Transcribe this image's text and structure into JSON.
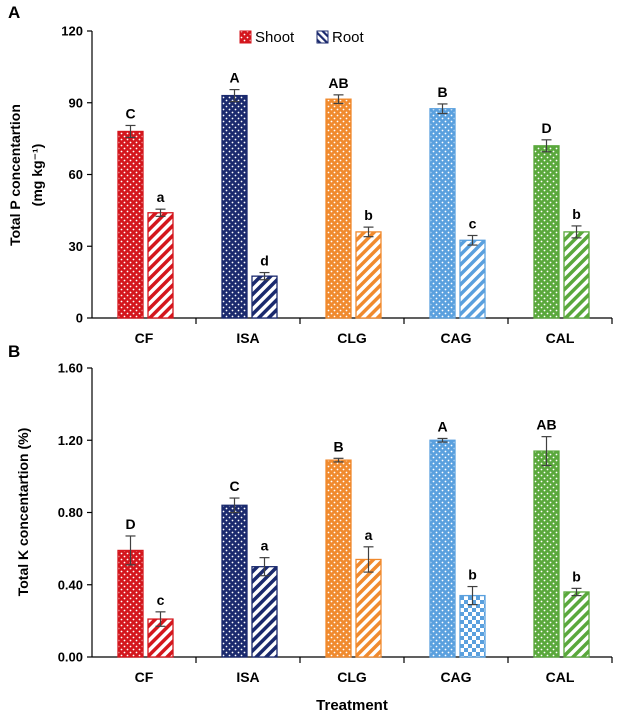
{
  "chart_data": [
    {
      "panel": "A",
      "type": "bar",
      "ylabel": "Total P concentartion",
      "ylabel_unit": "(mg kg⁻¹)",
      "xlabel": "",
      "ylim": [
        0,
        120
      ],
      "yticks": [
        "0",
        "30",
        "60",
        "90",
        "120"
      ],
      "categories": [
        "CF",
        "ISA",
        "CLG",
        "CAG",
        "CAL"
      ],
      "series": [
        {
          "name": "Shoot",
          "values": [
            78,
            93,
            91.5,
            87.5,
            72
          ],
          "errors": [
            2.5,
            2.5,
            1.8,
            2,
            2.5
          ],
          "letters": [
            "C",
            "A",
            "AB",
            "B",
            "D"
          ]
        },
        {
          "name": "Root",
          "values": [
            44,
            17.5,
            36,
            32.5,
            36
          ],
          "errors": [
            1.5,
            1.5,
            2,
            2,
            2.5
          ],
          "letters": [
            "a",
            "d",
            "b",
            "c",
            "b"
          ]
        }
      ],
      "legend": {
        "items": [
          "Shoot",
          "Root"
        ],
        "placement": "top-center"
      }
    },
    {
      "panel": "B",
      "type": "bar",
      "ylabel": "Total K concentartion (%)",
      "xlabel": "Treatment",
      "ylim": [
        0,
        1.6
      ],
      "yticks": [
        "0.00",
        "0.40",
        "0.80",
        "1.20",
        "1.60"
      ],
      "categories": [
        "CF",
        "ISA",
        "CLG",
        "CAG",
        "CAL"
      ],
      "series": [
        {
          "name": "Shoot",
          "values": [
            0.59,
            0.84,
            1.09,
            1.2,
            1.14
          ],
          "errors": [
            0.08,
            0.04,
            0.01,
            0.01,
            0.08
          ],
          "letters": [
            "D",
            "C",
            "B",
            "A",
            "AB"
          ]
        },
        {
          "name": "Root",
          "values": [
            0.21,
            0.5,
            0.54,
            0.34,
            0.36
          ],
          "errors": [
            0.04,
            0.05,
            0.07,
            0.05,
            0.02
          ],
          "letters": [
            "c",
            "a",
            "a",
            "b",
            "b"
          ]
        }
      ]
    }
  ],
  "colors": {
    "cf": "#d4161d",
    "isa": "#1b2a6e",
    "clg": "#f08a2e",
    "cag": "#5aa0de",
    "cal": "#5aa83c",
    "axis": "#000000",
    "error": "#404040"
  }
}
